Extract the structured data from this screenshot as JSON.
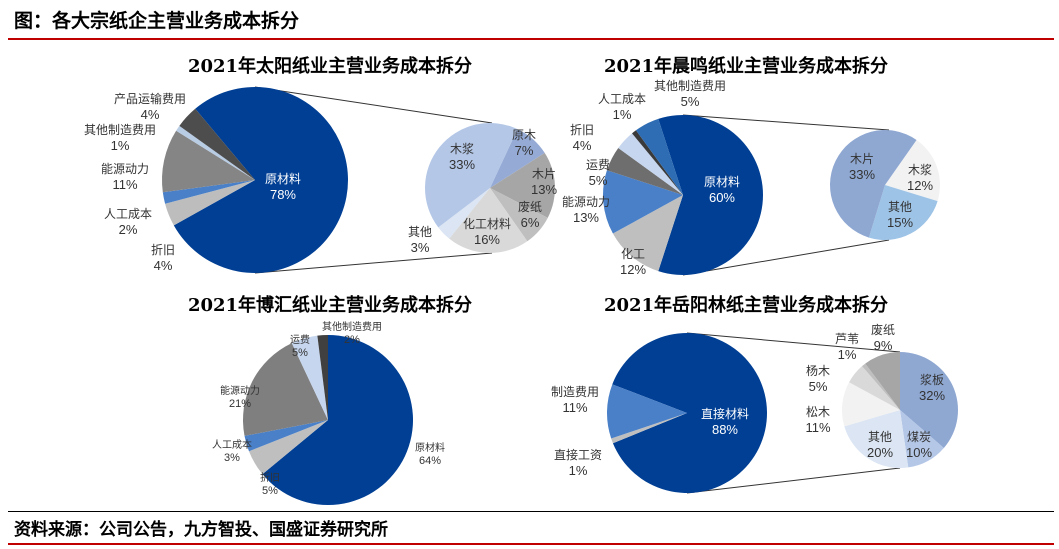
{
  "header": {
    "title": "图：各大宗纸企主营业务成本拆分"
  },
  "footer": {
    "source": "资料来源：公司公告，九方智投、国盛证券研究所"
  },
  "chart_data": [
    {
      "type": "pie",
      "title": "2021年太阳纸业主营业务成本拆分",
      "main": [
        {
          "label": "原材料",
          "value": 78,
          "display": "78%",
          "color": "#003f94"
        },
        {
          "label": "折旧",
          "value": 4,
          "display": "4%",
          "color": "#bdbdbd"
        },
        {
          "label": "人工成本",
          "value": 2,
          "display": "2%",
          "color": "#4a80c8"
        },
        {
          "label": "能源动力",
          "value": 11,
          "display": "11%",
          "color": "#858585"
        },
        {
          "label": "其他制造费用",
          "value": 1,
          "display": "1%",
          "color": "#b8cce4"
        },
        {
          "label": "产品运输费用",
          "value": 4,
          "display": "4%",
          "color": "#4d4d4d"
        }
      ],
      "secondary": [
        {
          "label": "原木",
          "value": 7,
          "display": "7%",
          "color": "#95abd6"
        },
        {
          "label": "木片",
          "value": 13,
          "display": "13%",
          "color": "#a6a6a6"
        },
        {
          "label": "废纸",
          "value": 6,
          "display": "6%",
          "color": "#bfbfbf"
        },
        {
          "label": "化工材料",
          "value": 16,
          "display": "16%",
          "color": "#d9d9d9"
        },
        {
          "label": "其他",
          "value": 3,
          "display": "3%",
          "color": "#dbe5f3"
        },
        {
          "label": "木浆",
          "value": 33,
          "display": "33%",
          "color": "#b4c7e7"
        }
      ]
    },
    {
      "type": "pie",
      "title": "2021年晨鸣纸业主营业务成本拆分",
      "main": [
        {
          "label": "原材料",
          "value": 60,
          "display": "60%",
          "color": "#003f94"
        },
        {
          "label": "化工",
          "value": 12,
          "display": "12%",
          "color": "#bfbfbf"
        },
        {
          "label": "能源动力",
          "value": 13,
          "display": "13%",
          "color": "#4a80c8"
        },
        {
          "label": "运费",
          "value": 5,
          "display": "5%",
          "color": "#6e6e6e"
        },
        {
          "label": "折旧",
          "value": 4,
          "display": "4%",
          "color": "#c6d6ee"
        },
        {
          "label": "人工成本",
          "value": 1,
          "display": "1%",
          "color": "#3a3a3a"
        },
        {
          "label": "其他制造费用",
          "value": 5,
          "display": "5%",
          "color": "#2e6db4"
        }
      ],
      "secondary": [
        {
          "label": "木浆",
          "value": 12,
          "display": "12%",
          "color": "#f2f2f2"
        },
        {
          "label": "其他",
          "value": 15,
          "display": "15%",
          "color": "#9dc3e6"
        },
        {
          "label": "木片",
          "value": 33,
          "display": "33%",
          "color": "#8fa8d2"
        }
      ]
    },
    {
      "type": "pie",
      "title": "2021年博汇纸业主营业务成本拆分",
      "main": [
        {
          "label": "原材料",
          "value": 64,
          "display": "64%",
          "color": "#003f94"
        },
        {
          "label": "折旧",
          "value": 5,
          "display": "5%",
          "color": "#bfbfbf"
        },
        {
          "label": "人工成本",
          "value": 3,
          "display": "3%",
          "color": "#4a80c8"
        },
        {
          "label": "能源动力",
          "value": 21,
          "display": "21%",
          "color": "#7f7f7f"
        },
        {
          "label": "运费",
          "value": 5,
          "display": "5%",
          "color": "#c6d6ee"
        },
        {
          "label": "其他制造费用",
          "value": 2,
          "display": "2%",
          "color": "#404040"
        }
      ]
    },
    {
      "type": "pie",
      "title": "2021年岳阳林纸主营业务成本拆分",
      "main": [
        {
          "label": "直接材料",
          "value": 88,
          "display": "88%",
          "color": "#003f94"
        },
        {
          "label": "直接工资",
          "value": 1,
          "display": "1%",
          "color": "#bfbfbf"
        },
        {
          "label": "制造费用",
          "value": 11,
          "display": "11%",
          "color": "#4a80c8"
        }
      ],
      "secondary": [
        {
          "label": "浆板",
          "value": 32,
          "display": "32%",
          "color": "#8fa8d2"
        },
        {
          "label": "煤炭",
          "value": 10,
          "display": "10%",
          "color": "#b4c7e7"
        },
        {
          "label": "其他",
          "value": 20,
          "display": "20%",
          "color": "#dbe5f3"
        },
        {
          "label": "松木",
          "value": 11,
          "display": "11%",
          "color": "#f2f2f2"
        },
        {
          "label": "杨木",
          "value": 5,
          "display": "5%",
          "color": "#d9d9d9"
        },
        {
          "label": "芦苇",
          "value": 1,
          "display": "1%",
          "color": "#bfbfbf"
        },
        {
          "label": "废纸",
          "value": 9,
          "display": "9%",
          "color": "#a6a6a6"
        }
      ]
    }
  ]
}
